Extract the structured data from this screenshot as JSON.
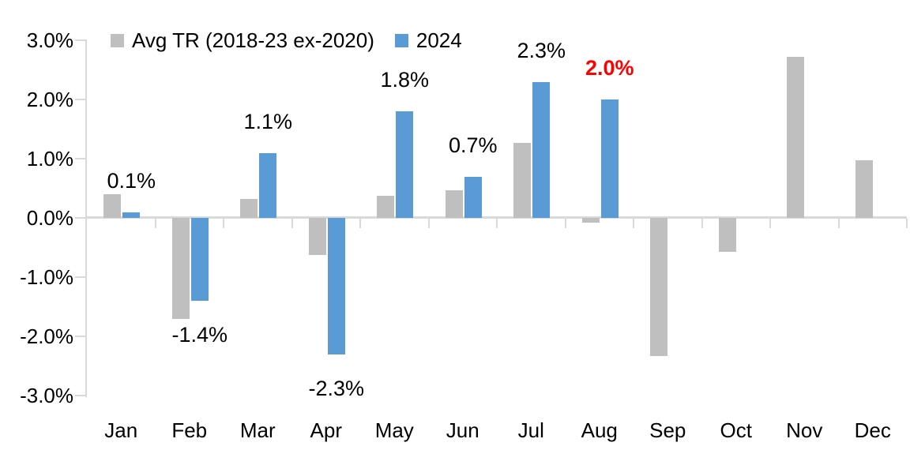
{
  "chart_data": {
    "type": "bar",
    "title": "",
    "categories": [
      "Jan",
      "Feb",
      "Mar",
      "Apr",
      "May",
      "Jun",
      "Jul",
      "Aug",
      "Sep",
      "Oct",
      "Nov",
      "Dec"
    ],
    "series": [
      {
        "name": "Avg TR (2018-23 ex-2020)",
        "color": "#BFBFBF",
        "values": [
          0.4,
          -1.7,
          0.32,
          -0.63,
          0.38,
          0.47,
          1.27,
          -0.08,
          -2.33,
          -0.57,
          2.72,
          0.97
        ]
      },
      {
        "name": "2024",
        "color": "#5B9BD5",
        "values": [
          0.1,
          -1.4,
          1.1,
          -2.3,
          1.8,
          0.7,
          2.3,
          2.0,
          null,
          null,
          null,
          null
        ]
      }
    ],
    "data_labels": [
      {
        "category": "Jan",
        "series": "2024",
        "text": "0.1%",
        "color": "#000000",
        "bold": false
      },
      {
        "category": "Feb",
        "series": "2024",
        "text": "-1.4%",
        "color": "#000000",
        "bold": false
      },
      {
        "category": "Mar",
        "series": "2024",
        "text": "1.1%",
        "color": "#000000",
        "bold": false
      },
      {
        "category": "Apr",
        "series": "2024",
        "text": "-2.3%",
        "color": "#000000",
        "bold": false
      },
      {
        "category": "May",
        "series": "2024",
        "text": "1.8%",
        "color": "#000000",
        "bold": false
      },
      {
        "category": "Jun",
        "series": "2024",
        "text": "0.7%",
        "color": "#000000",
        "bold": false
      },
      {
        "category": "Jul",
        "series": "2024",
        "text": "2.3%",
        "color": "#000000",
        "bold": false
      },
      {
        "category": "Aug",
        "series": "2024",
        "text": "2.0%",
        "color": "#FF0000",
        "bold": true
      }
    ],
    "y_ticks": [
      {
        "label": "3.0%",
        "value": 3
      },
      {
        "label": "2.0%",
        "value": 2
      },
      {
        "label": "1.0%",
        "value": 1
      },
      {
        "label": "0.0%",
        "value": 0
      },
      {
        "label": "-1.0%",
        "value": -1
      },
      {
        "label": "-2.0%",
        "value": -2
      },
      {
        "label": "-3.0%",
        "value": -3
      }
    ],
    "ylim": [
      -3,
      3
    ],
    "grid": false,
    "legend_position": "top",
    "axis_color": "#D9D9D9",
    "background": "#FFFFFF",
    "highlight_color": "#FF0000"
  }
}
